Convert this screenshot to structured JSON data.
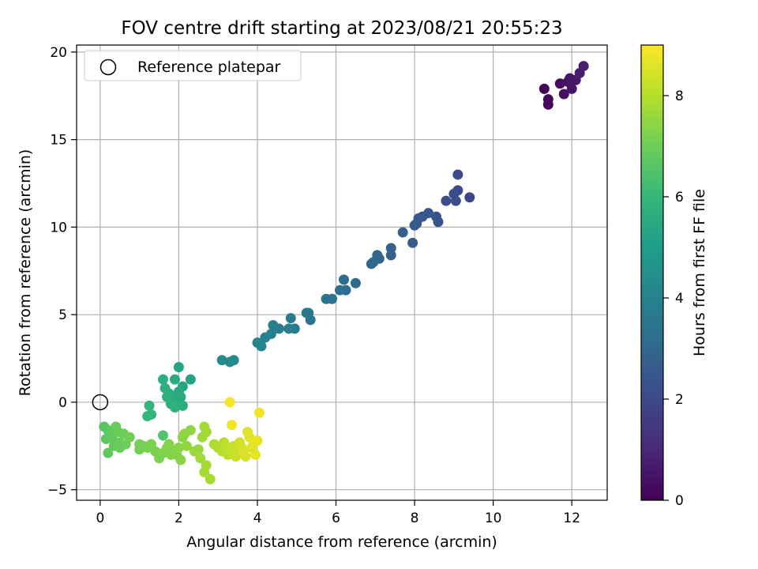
{
  "chart_data": {
    "type": "scatter",
    "title": "FOV centre drift starting at 2023/08/21 20:55:23",
    "xlabel": "Angular distance from reference (arcmin)",
    "ylabel": "Rotation from reference (arcmin)",
    "xlim": [
      -0.6,
      12.9
    ],
    "ylim": [
      -5.6,
      20.4
    ],
    "xticks": [
      0,
      2,
      4,
      6,
      8,
      10,
      12
    ],
    "yticks": [
      -5,
      0,
      5,
      10,
      15,
      20
    ],
    "grid": true,
    "legend": {
      "placement": "top-left",
      "entries": [
        {
          "label": "Reference platepar",
          "marker": "open-circle"
        }
      ]
    },
    "reference_point": {
      "x": 0,
      "y": 0
    },
    "colorbar": {
      "label": "Hours from first FF file",
      "range": [
        0,
        9
      ],
      "ticks": [
        0,
        2,
        4,
        6,
        8
      ],
      "colormap": "viridis"
    },
    "points": [
      {
        "x": 11.3,
        "y": 17.9,
        "c": 0.1
      },
      {
        "x": 11.4,
        "y": 17.0,
        "c": 0.2
      },
      {
        "x": 11.4,
        "y": 17.3,
        "c": 0.2
      },
      {
        "x": 11.7,
        "y": 18.2,
        "c": 0.3
      },
      {
        "x": 11.8,
        "y": 17.6,
        "c": 0.4
      },
      {
        "x": 11.9,
        "y": 18.3,
        "c": 0.4
      },
      {
        "x": 11.95,
        "y": 18.5,
        "c": 0.5
      },
      {
        "x": 12.0,
        "y": 17.9,
        "c": 0.5
      },
      {
        "x": 12.1,
        "y": 18.4,
        "c": 0.6
      },
      {
        "x": 12.2,
        "y": 18.8,
        "c": 0.7
      },
      {
        "x": 12.3,
        "y": 19.2,
        "c": 0.8
      },
      {
        "x": 9.4,
        "y": 11.7,
        "c": 1.9
      },
      {
        "x": 9.1,
        "y": 13.0,
        "c": 2.0
      },
      {
        "x": 9.1,
        "y": 12.1,
        "c": 2.0
      },
      {
        "x": 9.05,
        "y": 11.5,
        "c": 2.1
      },
      {
        "x": 9.0,
        "y": 11.9,
        "c": 2.1
      },
      {
        "x": 8.8,
        "y": 11.5,
        "c": 2.2
      },
      {
        "x": 8.6,
        "y": 10.3,
        "c": 2.3
      },
      {
        "x": 8.55,
        "y": 10.6,
        "c": 2.3
      },
      {
        "x": 8.35,
        "y": 10.8,
        "c": 2.4
      },
      {
        "x": 8.2,
        "y": 10.6,
        "c": 2.4
      },
      {
        "x": 8.1,
        "y": 10.5,
        "c": 2.5
      },
      {
        "x": 8.05,
        "y": 10.2,
        "c": 2.5
      },
      {
        "x": 8.0,
        "y": 10.1,
        "c": 2.6
      },
      {
        "x": 7.95,
        "y": 9.1,
        "c": 2.6
      },
      {
        "x": 7.7,
        "y": 9.7,
        "c": 2.7
      },
      {
        "x": 7.4,
        "y": 8.8,
        "c": 2.8
      },
      {
        "x": 7.4,
        "y": 8.4,
        "c": 2.8
      },
      {
        "x": 7.1,
        "y": 8.2,
        "c": 2.9
      },
      {
        "x": 7.05,
        "y": 8.4,
        "c": 2.9
      },
      {
        "x": 6.95,
        "y": 8.0,
        "c": 3.0
      },
      {
        "x": 6.9,
        "y": 7.9,
        "c": 3.0
      },
      {
        "x": 6.5,
        "y": 6.8,
        "c": 3.1
      },
      {
        "x": 6.25,
        "y": 6.4,
        "c": 3.2
      },
      {
        "x": 6.2,
        "y": 7.0,
        "c": 3.2
      },
      {
        "x": 6.1,
        "y": 6.4,
        "c": 3.3
      },
      {
        "x": 5.9,
        "y": 5.9,
        "c": 3.4
      },
      {
        "x": 5.75,
        "y": 5.9,
        "c": 3.4
      },
      {
        "x": 5.35,
        "y": 4.7,
        "c": 3.5
      },
      {
        "x": 5.3,
        "y": 5.1,
        "c": 3.5
      },
      {
        "x": 5.25,
        "y": 5.1,
        "c": 3.6
      },
      {
        "x": 4.95,
        "y": 4.2,
        "c": 3.7
      },
      {
        "x": 4.85,
        "y": 4.8,
        "c": 3.7
      },
      {
        "x": 4.8,
        "y": 4.2,
        "c": 3.8
      },
      {
        "x": 4.55,
        "y": 4.2,
        "c": 3.8
      },
      {
        "x": 4.4,
        "y": 4.4,
        "c": 3.9
      },
      {
        "x": 4.35,
        "y": 3.9,
        "c": 3.9
      },
      {
        "x": 4.2,
        "y": 3.7,
        "c": 4.0
      },
      {
        "x": 4.1,
        "y": 3.2,
        "c": 4.0
      },
      {
        "x": 4.0,
        "y": 3.4,
        "c": 4.1
      },
      {
        "x": 3.4,
        "y": 2.4,
        "c": 4.2
      },
      {
        "x": 3.3,
        "y": 2.3,
        "c": 4.3
      },
      {
        "x": 3.1,
        "y": 2.4,
        "c": 4.3
      },
      {
        "x": 2.3,
        "y": 1.3,
        "c": 5.2
      },
      {
        "x": 2.1,
        "y": 0.9,
        "c": 5.3
      },
      {
        "x": 2.0,
        "y": 2.0,
        "c": 5.3
      },
      {
        "x": 2.0,
        "y": 0.6,
        "c": 5.4
      },
      {
        "x": 1.95,
        "y": 0.1,
        "c": 5.4
      },
      {
        "x": 1.9,
        "y": 1.3,
        "c": 5.5
      },
      {
        "x": 1.85,
        "y": 0.2,
        "c": 5.5
      },
      {
        "x": 1.8,
        "y": -0.1,
        "c": 5.6
      },
      {
        "x": 1.75,
        "y": 0.5,
        "c": 5.6
      },
      {
        "x": 1.7,
        "y": 0.3,
        "c": 5.7
      },
      {
        "x": 1.65,
        "y": 0.8,
        "c": 5.7
      },
      {
        "x": 1.6,
        "y": 1.3,
        "c": 5.7
      },
      {
        "x": 2.1,
        "y": -0.2,
        "c": 5.6
      },
      {
        "x": 2.05,
        "y": 0.3,
        "c": 5.5
      },
      {
        "x": 1.9,
        "y": -0.3,
        "c": 5.8
      },
      {
        "x": 1.3,
        "y": -0.7,
        "c": 5.9
      },
      {
        "x": 1.25,
        "y": -0.2,
        "c": 5.9
      },
      {
        "x": 1.2,
        "y": -0.8,
        "c": 6.0
      },
      {
        "x": 0.1,
        "y": -1.4,
        "c": 6.6
      },
      {
        "x": 0.2,
        "y": -1.6,
        "c": 6.7
      },
      {
        "x": 0.15,
        "y": -2.1,
        "c": 6.7
      },
      {
        "x": 0.2,
        "y": -2.9,
        "c": 6.8
      },
      {
        "x": 0.3,
        "y": -2.0,
        "c": 6.8
      },
      {
        "x": 0.35,
        "y": -2.5,
        "c": 6.8
      },
      {
        "x": 0.4,
        "y": -1.4,
        "c": 6.9
      },
      {
        "x": 0.45,
        "y": -1.7,
        "c": 6.9
      },
      {
        "x": 0.5,
        "y": -2.3,
        "c": 6.9
      },
      {
        "x": 0.6,
        "y": -1.8,
        "c": 7.0
      },
      {
        "x": 0.65,
        "y": -2.4,
        "c": 7.0
      },
      {
        "x": 0.75,
        "y": -2.0,
        "c": 7.0
      },
      {
        "x": 0.5,
        "y": -2.6,
        "c": 6.9
      },
      {
        "x": 1.6,
        "y": -1.9,
        "c": 6.5
      },
      {
        "x": 1.0,
        "y": -2.4,
        "c": 7.1
      },
      {
        "x": 1.0,
        "y": -2.7,
        "c": 7.1
      },
      {
        "x": 1.1,
        "y": -2.5,
        "c": 7.1
      },
      {
        "x": 1.2,
        "y": -2.6,
        "c": 7.1
      },
      {
        "x": 1.3,
        "y": -2.4,
        "c": 7.2
      },
      {
        "x": 1.4,
        "y": -2.8,
        "c": 7.2
      },
      {
        "x": 1.5,
        "y": -3.2,
        "c": 7.2
      },
      {
        "x": 1.6,
        "y": -2.9,
        "c": 7.2
      },
      {
        "x": 1.7,
        "y": -2.6,
        "c": 7.3
      },
      {
        "x": 1.75,
        "y": -2.4,
        "c": 7.3
      },
      {
        "x": 1.8,
        "y": -3.0,
        "c": 7.3
      },
      {
        "x": 1.9,
        "y": -2.8,
        "c": 7.3
      },
      {
        "x": 1.95,
        "y": -3.0,
        "c": 7.3
      },
      {
        "x": 2.0,
        "y": -2.6,
        "c": 7.4
      },
      {
        "x": 2.05,
        "y": -3.3,
        "c": 7.4
      },
      {
        "x": 2.1,
        "y": -2.0,
        "c": 7.4
      },
      {
        "x": 2.15,
        "y": -1.8,
        "c": 7.5
      },
      {
        "x": 2.2,
        "y": -2.5,
        "c": 7.5
      },
      {
        "x": 2.3,
        "y": -1.6,
        "c": 7.5
      },
      {
        "x": 2.4,
        "y": -2.8,
        "c": 7.6
      },
      {
        "x": 2.5,
        "y": -2.7,
        "c": 7.6
      },
      {
        "x": 2.55,
        "y": -3.2,
        "c": 7.7
      },
      {
        "x": 2.6,
        "y": -2.0,
        "c": 7.7
      },
      {
        "x": 2.65,
        "y": -1.4,
        "c": 7.8
      },
      {
        "x": 2.7,
        "y": -1.7,
        "c": 7.7
      },
      {
        "x": 2.7,
        "y": -3.6,
        "c": 7.8
      },
      {
        "x": 2.65,
        "y": -4.0,
        "c": 7.8
      },
      {
        "x": 2.8,
        "y": -4.4,
        "c": 7.8
      },
      {
        "x": 2.9,
        "y": -2.4,
        "c": 7.9
      },
      {
        "x": 3.0,
        "y": -2.6,
        "c": 7.9
      },
      {
        "x": 3.1,
        "y": -2.8,
        "c": 8.0
      },
      {
        "x": 3.15,
        "y": -2.3,
        "c": 8.0
      },
      {
        "x": 3.2,
        "y": -2.5,
        "c": 8.1
      },
      {
        "x": 3.25,
        "y": -3.0,
        "c": 8.1
      },
      {
        "x": 3.3,
        "y": -2.7,
        "c": 8.2
      },
      {
        "x": 3.4,
        "y": -2.5,
        "c": 8.2
      },
      {
        "x": 3.45,
        "y": -3.1,
        "c": 8.3
      },
      {
        "x": 3.5,
        "y": -2.8,
        "c": 8.3
      },
      {
        "x": 3.55,
        "y": -2.3,
        "c": 8.4
      },
      {
        "x": 3.6,
        "y": -2.6,
        "c": 8.4
      },
      {
        "x": 3.65,
        "y": -2.9,
        "c": 8.5
      },
      {
        "x": 3.7,
        "y": -3.1,
        "c": 8.5
      },
      {
        "x": 3.75,
        "y": -1.7,
        "c": 8.6
      },
      {
        "x": 3.8,
        "y": -2.0,
        "c": 8.6
      },
      {
        "x": 3.85,
        "y": -2.6,
        "c": 8.6
      },
      {
        "x": 3.9,
        "y": -2.4,
        "c": 8.7
      },
      {
        "x": 3.95,
        "y": -3.0,
        "c": 8.7
      },
      {
        "x": 4.0,
        "y": -2.2,
        "c": 8.7
      },
      {
        "x": 4.05,
        "y": -0.6,
        "c": 8.8
      },
      {
        "x": 3.35,
        "y": -1.3,
        "c": 8.8
      },
      {
        "x": 3.3,
        "y": 0.0,
        "c": 8.9
      }
    ]
  }
}
